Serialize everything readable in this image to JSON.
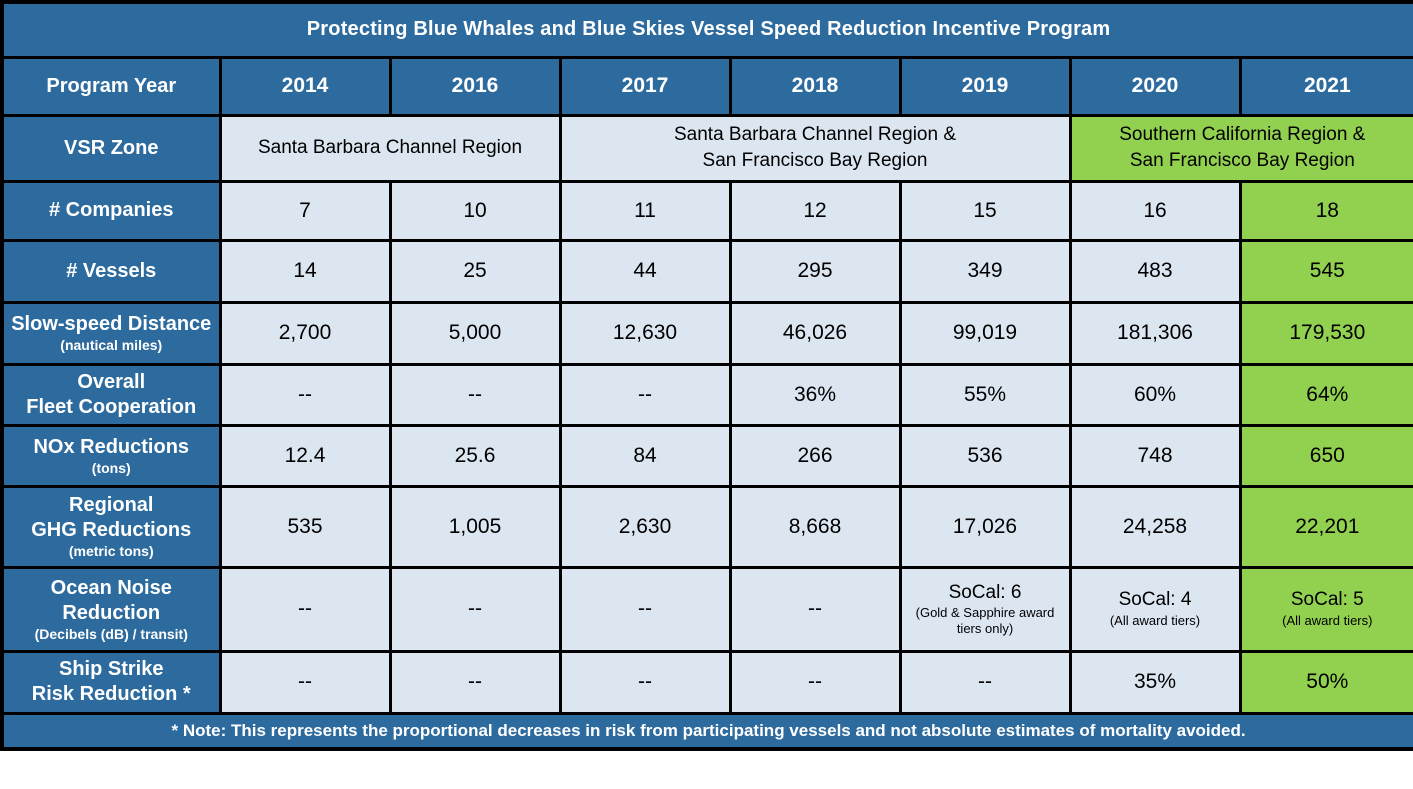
{
  "chart_data": {
    "type": "table",
    "title": "Protecting Blue Whales and Blue Skies Vessel Speed Reduction Incentive Program",
    "header": {
      "label": "Program Year",
      "years": [
        "2014",
        "2016",
        "2017",
        "2018",
        "2019",
        "2020",
        "2021"
      ]
    },
    "zone_row": {
      "label": "VSR Zone",
      "cells": [
        {
          "lines": [
            "Santa Barbara Channel Region"
          ],
          "span": 2,
          "green": false
        },
        {
          "lines": [
            "Santa Barbara Channel Region &",
            "San Francisco Bay Region"
          ],
          "span": 3,
          "green": false
        },
        {
          "lines": [
            "Southern California Region &",
            "San Francisco Bay Region"
          ],
          "span": 2,
          "green": true
        }
      ]
    },
    "data_rows": [
      {
        "name": "companies",
        "label_lines": [
          "# Companies"
        ],
        "unit": null,
        "values": [
          "7",
          "10",
          "11",
          "12",
          "15",
          "16",
          "18"
        ],
        "subs": [
          null,
          null,
          null,
          null,
          null,
          null,
          null
        ]
      },
      {
        "name": "vessels",
        "label_lines": [
          "# Vessels"
        ],
        "unit": null,
        "values": [
          "14",
          "25",
          "44",
          "295",
          "349",
          "483",
          "545"
        ],
        "subs": [
          null,
          null,
          null,
          null,
          null,
          null,
          null
        ]
      },
      {
        "name": "slow-speed-distance",
        "label_lines": [
          "Slow-speed Distance"
        ],
        "unit": "(nautical miles)",
        "values": [
          "2,700",
          "5,000",
          "12,630",
          "46,026",
          "99,019",
          "181,306",
          "179,530"
        ],
        "subs": [
          null,
          null,
          null,
          null,
          null,
          null,
          null
        ]
      },
      {
        "name": "fleet-cooperation",
        "label_lines": [
          "Overall",
          "Fleet Cooperation"
        ],
        "unit": null,
        "values": [
          "--",
          "--",
          "--",
          "36%",
          "55%",
          "60%",
          "64%"
        ],
        "subs": [
          null,
          null,
          null,
          null,
          null,
          null,
          null
        ]
      },
      {
        "name": "nox-reductions",
        "label_lines": [
          "NOx Reductions"
        ],
        "unit": "(tons)",
        "values": [
          "12.4",
          "25.6",
          "84",
          "266",
          "536",
          "748",
          "650"
        ],
        "subs": [
          null,
          null,
          null,
          null,
          null,
          null,
          null
        ]
      },
      {
        "name": "ghg-reductions",
        "label_lines": [
          "Regional",
          "GHG Reductions"
        ],
        "unit": "(metric tons)",
        "values": [
          "535",
          "1,005",
          "2,630",
          "8,668",
          "17,026",
          "24,258",
          "22,201"
        ],
        "subs": [
          null,
          null,
          null,
          null,
          null,
          null,
          null
        ]
      },
      {
        "name": "ocean-noise",
        "label_lines": [
          "Ocean Noise",
          "Reduction"
        ],
        "unit": "(Decibels (dB) / transit)",
        "values": [
          "--",
          "--",
          "--",
          "--",
          "SoCal: 6",
          "SoCal: 4",
          "SoCal: 5"
        ],
        "subs": [
          null,
          null,
          null,
          null,
          "(Gold & Sapphire award tiers only)",
          "(All award tiers)",
          "(All award tiers)"
        ]
      },
      {
        "name": "ship-strike",
        "label_lines": [
          "Ship Strike",
          "Risk Reduction *"
        ],
        "unit": null,
        "values": [
          "--",
          "--",
          "--",
          "--",
          "--",
          "35%",
          "50%"
        ],
        "subs": [
          null,
          null,
          null,
          null,
          null,
          null,
          null
        ]
      }
    ],
    "note": "* Note: This represents the proportional decreases in risk from participating vessels and not absolute estimates of mortality avoided.",
    "colors": {
      "header_blue": "#2d6b9e",
      "light_blue": "#dce6f1",
      "cell_green": "#92d050",
      "border_black": "#000000"
    }
  }
}
